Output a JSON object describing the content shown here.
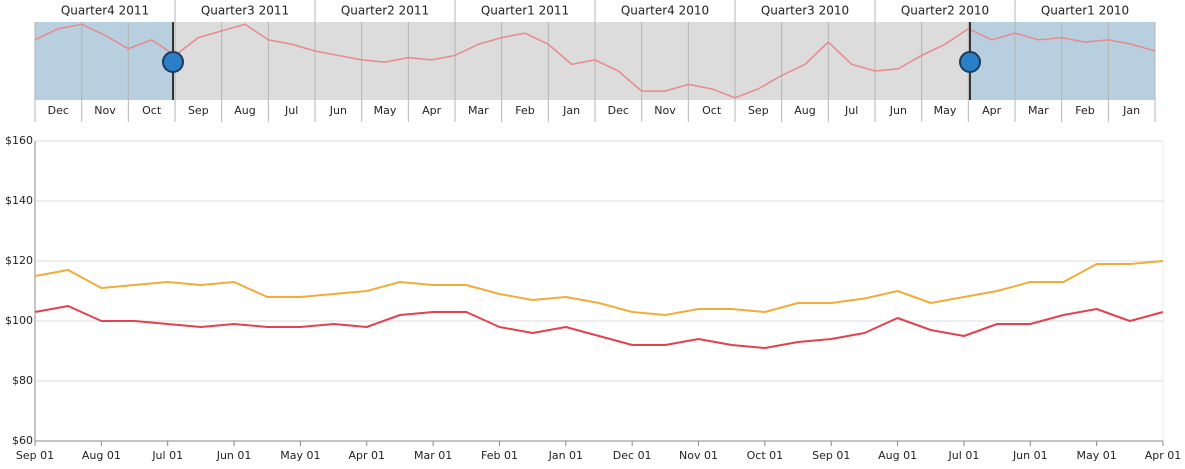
{
  "navigator": {
    "quarters": [
      "Quarter4 2011",
      "Quarter3 2011",
      "Quarter2 2011",
      "Quarter1 2011",
      "Quarter4 2010",
      "Quarter3 2010",
      "Quarter2 2010",
      "Quarter1 2010"
    ],
    "months": [
      "Dec",
      "Nov",
      "Oct",
      "Sep",
      "Aug",
      "Jul",
      "Jun",
      "May",
      "Apr",
      "Mar",
      "Feb",
      "Jan",
      "Dec",
      "Nov",
      "Oct",
      "Sep",
      "Aug",
      "Jul",
      "Jun",
      "May",
      "Apr",
      "Mar",
      "Feb",
      "Jan"
    ],
    "values": [
      107,
      112,
      114,
      109,
      103,
      107,
      100,
      108,
      111,
      114,
      107,
      105,
      102,
      100,
      98,
      97,
      99,
      98,
      100,
      105,
      108,
      110,
      105,
      96,
      98,
      93,
      84,
      84,
      87,
      85,
      81,
      85,
      91,
      96,
      106,
      96,
      93,
      94,
      100,
      105,
      112,
      107,
      110,
      107,
      108,
      106,
      107,
      105,
      102
    ],
    "ylim": [
      80,
      115
    ],
    "color": "#e8898c"
  },
  "chart_data": {
    "type": "line",
    "x_tick_labels": [
      "Sep 01",
      "Aug 01",
      "Jul 01",
      "Jun 01",
      "May 01",
      "Apr 01",
      "Mar 01",
      "Feb 01",
      "Jan 01",
      "Dec 01",
      "Nov 01",
      "Oct 01",
      "Sep 01",
      "Aug 01",
      "Jul 01",
      "Jun 01",
      "May 01",
      "Apr 01"
    ],
    "ylim": [
      60,
      160
    ],
    "yticks": [
      {
        "value": 60,
        "label": "$60"
      },
      {
        "value": 80,
        "label": "$80"
      },
      {
        "value": 100,
        "label": "$100"
      },
      {
        "value": 120,
        "label": "$120"
      },
      {
        "value": 140,
        "label": "$140"
      },
      {
        "value": 160,
        "label": "$160"
      }
    ],
    "grid": true,
    "series": [
      {
        "color": "#f0ad3a",
        "values": [
          115,
          117,
          111,
          112,
          113,
          112,
          113,
          108,
          108,
          109,
          110,
          113,
          112,
          112,
          109,
          107,
          108,
          106,
          103,
          102,
          104,
          104,
          103,
          106,
          106,
          107.5,
          110,
          106,
          108,
          110,
          113,
          113,
          119,
          119,
          120
        ]
      },
      {
        "color": "#e0434f",
        "values": [
          103,
          105,
          100,
          100,
          99,
          98,
          99,
          98,
          98,
          99,
          98,
          102,
          103,
          103,
          98,
          96,
          98,
          95,
          92,
          92,
          94,
          92,
          91,
          93,
          94,
          96,
          101,
          97,
          95,
          99,
          99,
          102,
          104,
          100,
          103
        ]
      }
    ]
  }
}
